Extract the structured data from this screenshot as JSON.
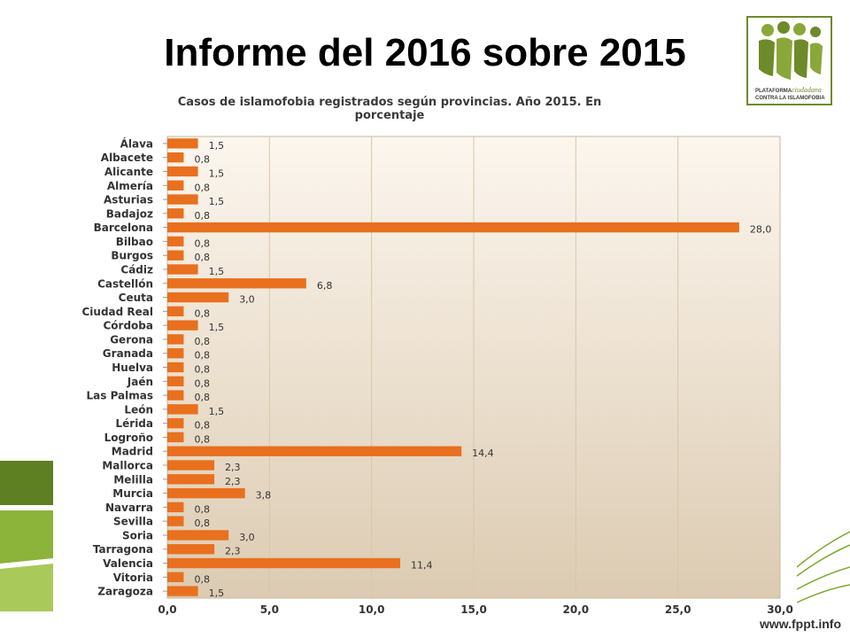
{
  "slide": {
    "title": "Informe del 2016 sobre 2015",
    "footer_url": "www.fppt.info"
  },
  "logo": {
    "line1_prefix": "PLATAFORMA",
    "line1_script": "ciudadana",
    "line2": "CONTRA LA ISLAMOFOBIA",
    "brand_color": "#6e8a2a"
  },
  "chart_data": {
    "type": "bar",
    "orientation": "horizontal",
    "title": "Casos de islamofobia registrados según provincias. Año 2015. En porcentaje",
    "categories": [
      "Álava",
      "Albacete",
      "Alicante",
      "Almería",
      "Asturias",
      "Badajoz",
      "Barcelona",
      "Bilbao",
      "Burgos",
      "Cádiz",
      "Castellón",
      "Ceuta",
      "Ciudad Real",
      "Córdoba",
      "Gerona",
      "Granada",
      "Huelva",
      "Jaén",
      "Las Palmas",
      "León",
      "Lérida",
      "Logroño",
      "Madrid",
      "Mallorca",
      "Melilla",
      "Murcia",
      "Navarra",
      "Sevilla",
      "Soria",
      "Tarragona",
      "Valencia",
      "Vitoria",
      "Zaragoza"
    ],
    "values": [
      1.5,
      0.8,
      1.5,
      0.8,
      1.5,
      0.8,
      28.0,
      0.8,
      0.8,
      1.5,
      6.8,
      3.0,
      0.8,
      1.5,
      0.8,
      0.8,
      0.8,
      0.8,
      0.8,
      1.5,
      0.8,
      0.8,
      14.4,
      2.3,
      2.3,
      3.8,
      0.8,
      0.8,
      3.0,
      2.3,
      11.4,
      0.8,
      1.5
    ],
    "value_labels": [
      "1,5",
      "0,8",
      "1,5",
      "0,8",
      "1,5",
      "0,8",
      "28,0",
      "0,8",
      "0,8",
      "1,5",
      "6,8",
      "3,0",
      "0,8",
      "1,5",
      "0,8",
      "0,8",
      "0,8",
      "0,8",
      "0,8",
      "1,5",
      "0,8",
      "0,8",
      "14,4",
      "2,3",
      "2,3",
      "3,8",
      "0,8",
      "0,8",
      "3,0",
      "2,3",
      "11,4",
      "0,8",
      "1,5"
    ],
    "xlim": [
      0,
      30
    ],
    "xticks": [
      0,
      5,
      10,
      15,
      20,
      25,
      30
    ],
    "xtick_labels": [
      "0,0",
      "5,0",
      "10,0",
      "15,0",
      "20,0",
      "25,0",
      "30,0"
    ],
    "grid": "vertical",
    "legend": "none",
    "bar_color": "#e8701e",
    "plot_bg_top": "#fcf6ee",
    "plot_bg_bottom": "#dccbb2"
  }
}
